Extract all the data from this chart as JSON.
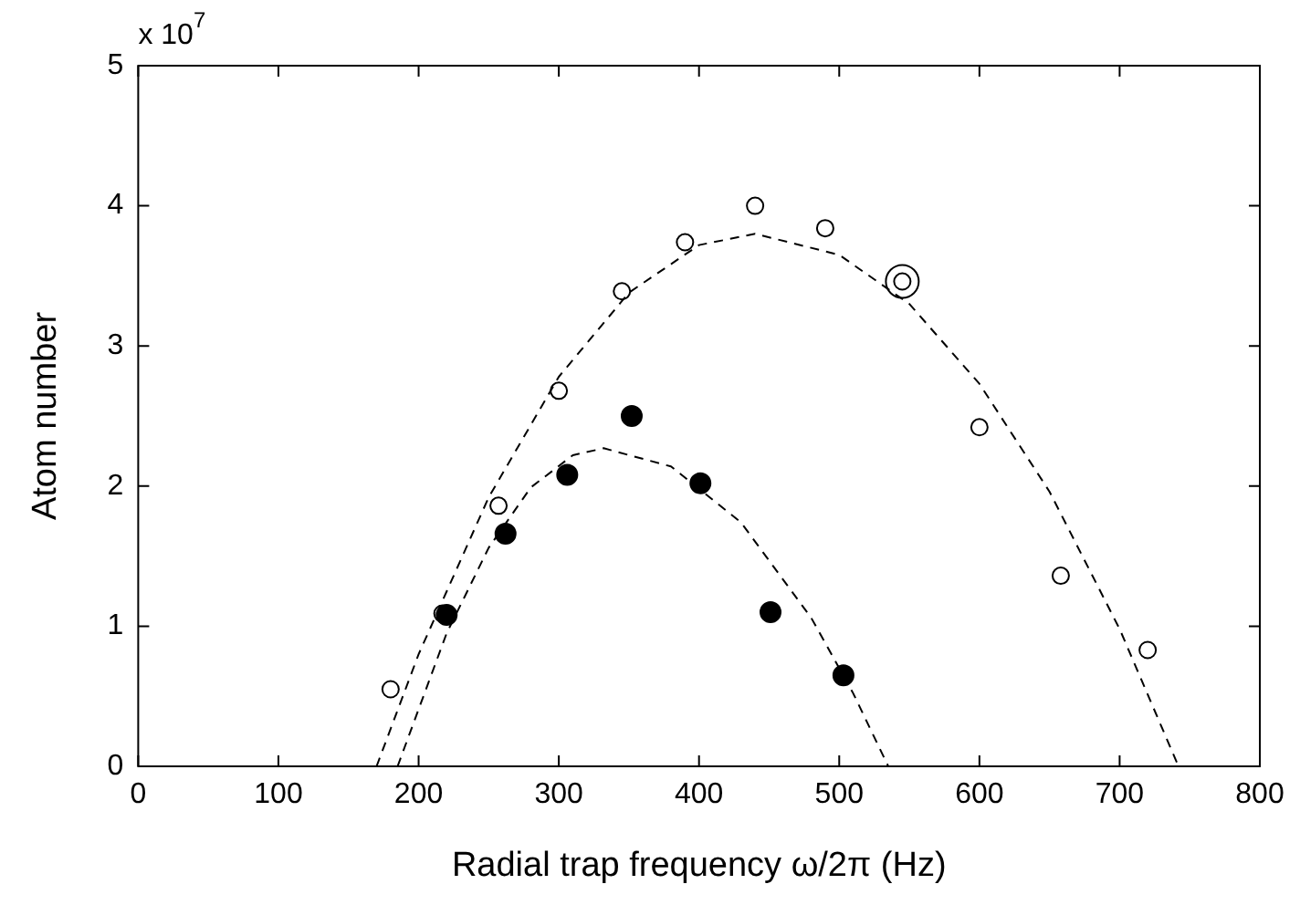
{
  "chart_data": {
    "type": "scatter",
    "xlabel": "Radial trap frequency ω/2π (Hz)",
    "ylabel": "Atom number",
    "annotations": [
      "x 10$^{7}$"
    ],
    "xlim": [
      0,
      800
    ],
    "xticks": [
      0,
      100,
      200,
      300,
      400,
      500,
      600,
      700,
      800
    ],
    "ylim": [
      0,
      5
    ],
    "yticks": [
      0,
      1,
      2,
      3,
      4,
      5
    ],
    "grid": false,
    "legend": false,
    "series": [
      {
        "marker": "circle",
        "color": "#000000",
        "x": [
          180,
          217,
          257,
          300,
          345,
          390,
          440,
          490,
          545,
          600,
          658,
          720
        ],
        "values": [
          0.55,
          1.09,
          1.86,
          2.68,
          3.39,
          3.74,
          4.0,
          3.84,
          3.46,
          2.42,
          1.36,
          0.83
        ]
      },
      {
        "marker": "circle",
        "color": "#000000",
        "x": [
          220,
          262,
          306,
          352,
          401,
          451,
          503
        ],
        "values": [
          1.08,
          1.66,
          2.08,
          2.5,
          2.02,
          1.1,
          0.65
        ]
      },
      {
        "marker": "circle",
        "color": "#000000",
        "x": [
          545
        ],
        "values": [
          3.46
        ]
      },
      {
        "type": "line",
        "marker": "none",
        "line_style": "dashed",
        "color": "#000000",
        "x": [
          170,
          200,
          250,
          300,
          350,
          400,
          440,
          500,
          550,
          600,
          650,
          700,
          742
        ],
        "values": [
          0,
          0.8,
          1.92,
          2.78,
          3.38,
          3.72,
          3.8,
          3.65,
          3.3,
          2.73,
          1.96,
          0.98,
          0
        ]
      },
      {
        "type": "line",
        "marker": "none",
        "line_style": "dashed",
        "color": "#000000",
        "x": [
          185,
          220,
          250,
          280,
          310,
          332,
          380,
          430,
          480,
          510,
          535
        ],
        "values": [
          0,
          0.95,
          1.56,
          1.99,
          2.22,
          2.27,
          2.14,
          1.74,
          1.06,
          0.52,
          0
        ]
      }
    ]
  }
}
